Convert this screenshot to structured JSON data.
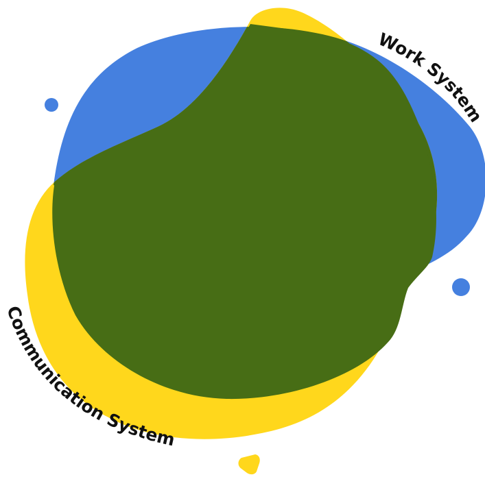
{
  "diagram": {
    "sets": [
      {
        "label": "Work System",
        "color": "#4580DF"
      },
      {
        "label": "Communication System",
        "color": "#FFD71C"
      }
    ],
    "overlap_color": "#476D15",
    "accent_dot_color": "#4580DF"
  }
}
